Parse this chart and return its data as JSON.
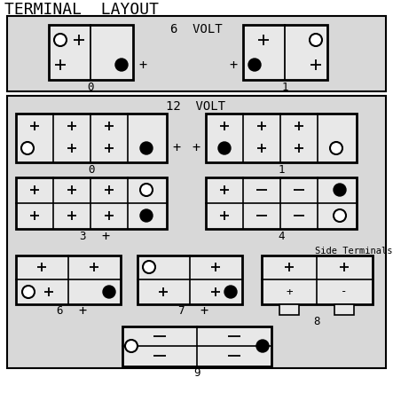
{
  "title": "TERMINAL  LAYOUT",
  "bg_light": "#e8e8e8",
  "bg_box": "#f0f0f0",
  "section_6v_label": "6  VOLT",
  "section_12v_label": "12  VOLT",
  "side_terminals_label": "Side Terminals"
}
